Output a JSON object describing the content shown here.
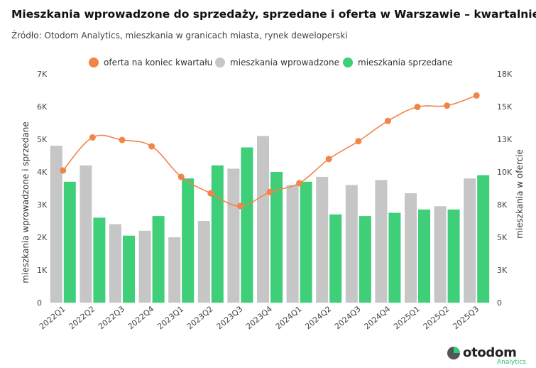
{
  "title": "Mieszkania wprowadzone do sprzedaży, sprzedane i oferta w Warszawie – kwartalnie",
  "subtitle": "Źródło: Otodom Analytics, mieszkania w granicach miasta, rynek deweloperski",
  "logo": {
    "name": "otodom",
    "sub": "Analytics"
  },
  "colors": {
    "introduced": "#c6c6c6",
    "sold": "#3ecf78",
    "offer": "#f2844a",
    "grid": "#e6e6e6",
    "tick": "#444444"
  },
  "chart_data": {
    "type": "bar",
    "categories": [
      "2022Q1",
      "2022Q2",
      "2022Q3",
      "2022Q4",
      "2023Q1",
      "2023Q2",
      "2023Q3",
      "2023Q4",
      "2024Q1",
      "2024Q2",
      "2024Q3",
      "2024Q4",
      "2025Q1",
      "2025Q2",
      "2025Q3"
    ],
    "series": [
      {
        "name": "mieszkania wprowadzone",
        "type": "bar",
        "axis": "left",
        "values": [
          4800,
          4200,
          2400,
          2200,
          2000,
          2500,
          4100,
          5100,
          3600,
          3850,
          3600,
          3750,
          3350,
          2950,
          3800
        ]
      },
      {
        "name": "mieszkania sprzedane",
        "type": "bar",
        "axis": "left",
        "values": [
          3700,
          2600,
          2050,
          2650,
          3800,
          4200,
          4750,
          4000,
          3700,
          2700,
          2650,
          2750,
          2850,
          2850,
          3900
        ]
      },
      {
        "name": "oferta na koniec kwartału",
        "type": "line",
        "axis": "right",
        "values": [
          10400,
          13000,
          12800,
          12300,
          9900,
          8600,
          7600,
          8700,
          9400,
          11300,
          12700,
          14300,
          15400,
          15500,
          16300
        ]
      }
    ],
    "yleft": {
      "label": "mieszkania wprowadzone i sprzedane",
      "ylim": [
        0,
        7000
      ],
      "ticks": [
        "0",
        "1K",
        "2K",
        "3K",
        "4K",
        "5K",
        "6K",
        "7K"
      ]
    },
    "yright": {
      "label": "mieszkania w ofercie",
      "ylim": [
        0,
        18000
      ],
      "ticks": [
        "0",
        "3K",
        "5K",
        "8K",
        "10K",
        "13K",
        "15K",
        "18K"
      ]
    },
    "legend": "top-center",
    "grid": false
  }
}
